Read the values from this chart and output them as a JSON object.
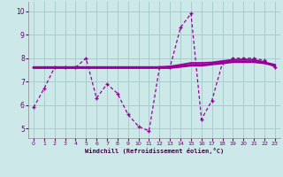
{
  "xlabel": "Windchill (Refroidissement éolien,°C)",
  "background_color": "#cce8e8",
  "grid_color": "#aacccc",
  "line_color": "#990099",
  "xlim": [
    -0.5,
    23.5
  ],
  "ylim": [
    4.6,
    10.4
  ],
  "yticks": [
    5,
    6,
    7,
    8,
    9,
    10
  ],
  "xticks": [
    0,
    1,
    2,
    3,
    4,
    5,
    6,
    7,
    8,
    9,
    10,
    11,
    12,
    13,
    14,
    15,
    16,
    17,
    18,
    19,
    20,
    21,
    22,
    23
  ],
  "hours": [
    0,
    1,
    2,
    3,
    4,
    5,
    6,
    7,
    8,
    9,
    10,
    11,
    12,
    13,
    14,
    15,
    16,
    17,
    18,
    19,
    20,
    21,
    22,
    23
  ],
  "main_y": [
    5.9,
    6.7,
    7.6,
    7.6,
    7.6,
    8.0,
    6.3,
    6.9,
    6.5,
    5.6,
    5.1,
    4.9,
    7.6,
    7.6,
    9.3,
    9.9,
    5.4,
    6.2,
    7.8,
    8.0,
    8.0,
    8.0,
    7.9,
    7.6
  ],
  "smooth_y1": [
    7.6,
    7.6,
    7.6,
    7.6,
    7.6,
    7.6,
    7.6,
    7.6,
    7.6,
    7.6,
    7.6,
    7.6,
    7.6,
    7.6,
    7.65,
    7.7,
    7.7,
    7.75,
    7.8,
    7.85,
    7.85,
    7.85,
    7.8,
    7.7
  ],
  "smooth_y2": [
    7.6,
    7.6,
    7.6,
    7.6,
    7.6,
    7.6,
    7.6,
    7.6,
    7.6,
    7.6,
    7.6,
    7.6,
    7.62,
    7.65,
    7.72,
    7.8,
    7.8,
    7.82,
    7.88,
    7.93,
    7.95,
    7.93,
    7.83,
    7.65
  ]
}
